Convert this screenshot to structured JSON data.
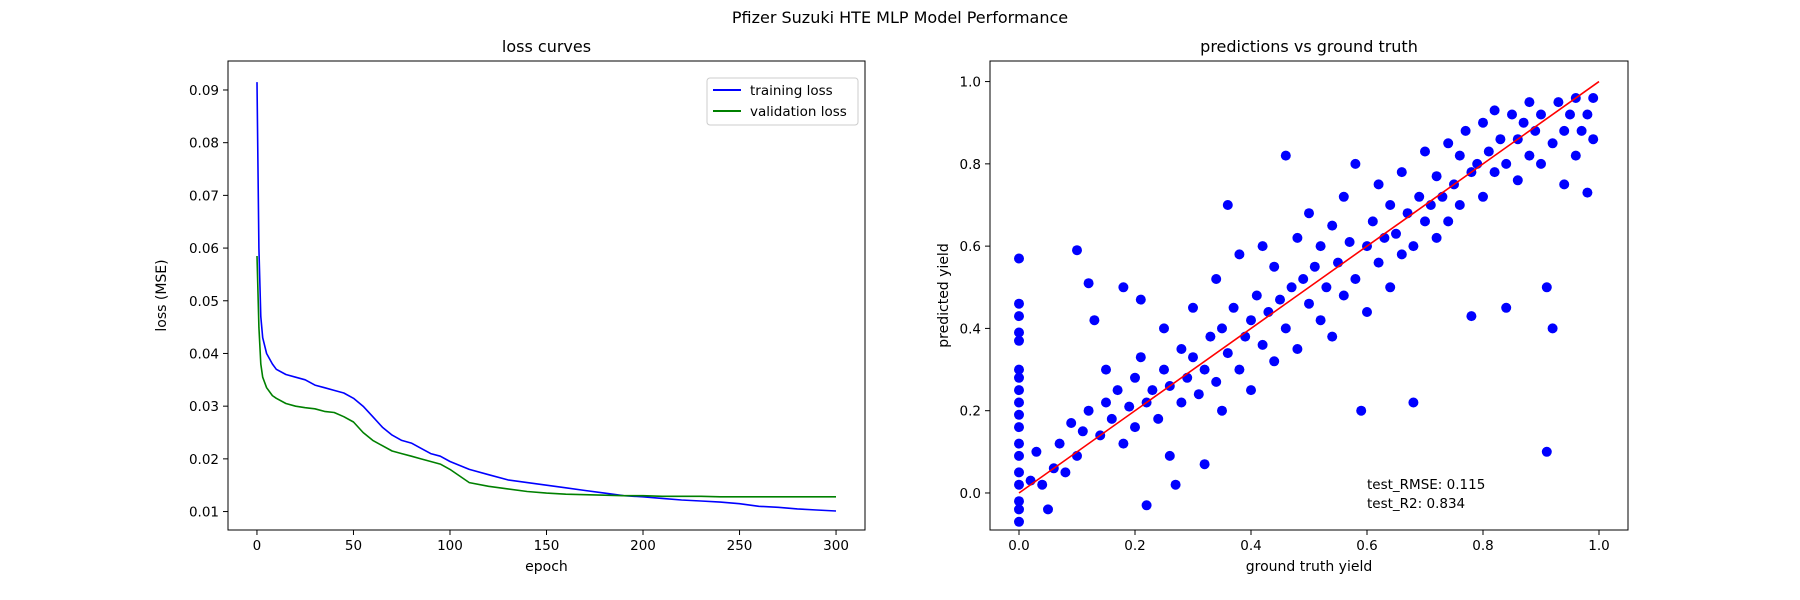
{
  "figure_title": "Pfizer Suzuki HTE MLP Model Performance",
  "colors": {
    "training": "#0000ff",
    "validation": "#008000",
    "scatter": "#0000ff",
    "identity_line": "#ff0000"
  },
  "chart_data": [
    {
      "type": "line",
      "title": "loss curves",
      "xlabel": "epoch",
      "ylabel": "loss (MSE)",
      "xlim": [
        -15,
        315
      ],
      "ylim": [
        0.0065,
        0.0955
      ],
      "xticks": [
        0,
        50,
        100,
        150,
        200,
        250,
        300
      ],
      "yticks": [
        0.01,
        0.02,
        0.03,
        0.04,
        0.05,
        0.06,
        0.07,
        0.08,
        0.09
      ],
      "ytick_labels": [
        "0.01",
        "0.02",
        "0.03",
        "0.04",
        "0.05",
        "0.06",
        "0.07",
        "0.08",
        "0.09"
      ],
      "grid": false,
      "legend": "top-right",
      "series": [
        {
          "name": "training loss",
          "x": [
            0,
            1,
            2,
            3,
            5,
            8,
            10,
            15,
            20,
            25,
            30,
            35,
            40,
            45,
            50,
            55,
            60,
            65,
            70,
            75,
            80,
            85,
            90,
            95,
            100,
            110,
            120,
            130,
            140,
            150,
            160,
            170,
            180,
            190,
            200,
            210,
            220,
            230,
            240,
            250,
            260,
            270,
            280,
            290,
            300
          ],
          "y": [
            0.0915,
            0.06,
            0.047,
            0.043,
            0.04,
            0.038,
            0.037,
            0.036,
            0.0355,
            0.035,
            0.034,
            0.0335,
            0.033,
            0.0325,
            0.0315,
            0.03,
            0.028,
            0.026,
            0.0245,
            0.0235,
            0.023,
            0.022,
            0.021,
            0.0205,
            0.0195,
            0.018,
            0.017,
            0.016,
            0.0155,
            0.015,
            0.0145,
            0.014,
            0.0135,
            0.013,
            0.0128,
            0.0125,
            0.0122,
            0.012,
            0.0118,
            0.0115,
            0.011,
            0.0108,
            0.0105,
            0.0103,
            0.0101
          ]
        },
        {
          "name": "validation loss",
          "x": [
            0,
            1,
            2,
            3,
            5,
            8,
            10,
            15,
            20,
            25,
            30,
            35,
            40,
            45,
            50,
            55,
            60,
            65,
            70,
            75,
            80,
            85,
            90,
            95,
            100,
            110,
            120,
            130,
            140,
            150,
            160,
            170,
            180,
            190,
            200,
            210,
            220,
            230,
            240,
            250,
            260,
            270,
            280,
            290,
            300
          ],
          "y": [
            0.0585,
            0.045,
            0.038,
            0.0355,
            0.0335,
            0.032,
            0.0315,
            0.0305,
            0.03,
            0.0297,
            0.0295,
            0.029,
            0.0288,
            0.028,
            0.027,
            0.025,
            0.0235,
            0.0225,
            0.0215,
            0.021,
            0.0205,
            0.02,
            0.0195,
            0.019,
            0.018,
            0.0155,
            0.0148,
            0.0143,
            0.0138,
            0.0135,
            0.0133,
            0.0132,
            0.0131,
            0.013,
            0.013,
            0.0129,
            0.0129,
            0.0129,
            0.0128,
            0.0128,
            0.0128,
            0.0128,
            0.0128,
            0.0128,
            0.0128
          ]
        }
      ]
    },
    {
      "type": "scatter",
      "title": "predictions vs ground truth",
      "xlabel": "ground truth yield",
      "ylabel": "predicted yield",
      "xlim": [
        -0.05,
        1.05
      ],
      "ylim": [
        -0.09,
        1.05
      ],
      "xticks": [
        0.0,
        0.2,
        0.4,
        0.6,
        0.8,
        1.0
      ],
      "yticks": [
        0.0,
        0.2,
        0.4,
        0.6,
        0.8,
        1.0
      ],
      "tick_labels": [
        "0.0",
        "0.2",
        "0.4",
        "0.6",
        "0.8",
        "1.0"
      ],
      "grid": false,
      "reference_line": {
        "x": [
          0,
          1
        ],
        "y": [
          0,
          1
        ]
      },
      "annotations": [
        "test_RMSE: 0.115",
        "test_R2: 0.834"
      ],
      "annotation_anchor": [
        0.6,
        0.0
      ],
      "points": [
        [
          0.0,
          0.57
        ],
        [
          0.0,
          0.46
        ],
        [
          0.0,
          0.43
        ],
        [
          0.0,
          0.39
        ],
        [
          0.0,
          0.37
        ],
        [
          0.0,
          0.3
        ],
        [
          0.0,
          0.28
        ],
        [
          0.0,
          0.25
        ],
        [
          0.0,
          0.22
        ],
        [
          0.0,
          0.19
        ],
        [
          0.0,
          0.16
        ],
        [
          0.0,
          0.12
        ],
        [
          0.0,
          0.09
        ],
        [
          0.0,
          0.05
        ],
        [
          0.0,
          0.02
        ],
        [
          0.0,
          -0.02
        ],
        [
          0.0,
          -0.04
        ],
        [
          0.0,
          -0.07
        ],
        [
          0.02,
          0.03
        ],
        [
          0.03,
          0.1
        ],
        [
          0.04,
          0.02
        ],
        [
          0.05,
          -0.04
        ],
        [
          0.06,
          0.06
        ],
        [
          0.07,
          0.12
        ],
        [
          0.08,
          0.05
        ],
        [
          0.09,
          0.17
        ],
        [
          0.1,
          0.59
        ],
        [
          0.1,
          0.09
        ],
        [
          0.11,
          0.15
        ],
        [
          0.12,
          0.2
        ],
        [
          0.12,
          0.51
        ],
        [
          0.13,
          0.42
        ],
        [
          0.14,
          0.14
        ],
        [
          0.15,
          0.22
        ],
        [
          0.15,
          0.3
        ],
        [
          0.16,
          0.18
        ],
        [
          0.17,
          0.25
        ],
        [
          0.18,
          0.5
        ],
        [
          0.18,
          0.12
        ],
        [
          0.19,
          0.21
        ],
        [
          0.2,
          0.28
        ],
        [
          0.2,
          0.16
        ],
        [
          0.21,
          0.33
        ],
        [
          0.21,
          0.47
        ],
        [
          0.22,
          -0.03
        ],
        [
          0.22,
          0.22
        ],
        [
          0.23,
          0.25
        ],
        [
          0.24,
          0.18
        ],
        [
          0.25,
          0.3
        ],
        [
          0.25,
          0.4
        ],
        [
          0.26,
          0.26
        ],
        [
          0.26,
          0.09
        ],
        [
          0.27,
          0.02
        ],
        [
          0.28,
          0.35
        ],
        [
          0.28,
          0.22
        ],
        [
          0.29,
          0.28
        ],
        [
          0.3,
          0.33
        ],
        [
          0.3,
          0.45
        ],
        [
          0.31,
          0.24
        ],
        [
          0.32,
          0.3
        ],
        [
          0.32,
          0.07
        ],
        [
          0.33,
          0.38
        ],
        [
          0.34,
          0.52
        ],
        [
          0.34,
          0.27
        ],
        [
          0.35,
          0.4
        ],
        [
          0.35,
          0.2
        ],
        [
          0.36,
          0.34
        ],
        [
          0.36,
          0.7
        ],
        [
          0.37,
          0.45
        ],
        [
          0.38,
          0.3
        ],
        [
          0.38,
          0.58
        ],
        [
          0.39,
          0.38
        ],
        [
          0.4,
          0.42
        ],
        [
          0.4,
          0.25
        ],
        [
          0.41,
          0.48
        ],
        [
          0.42,
          0.36
        ],
        [
          0.42,
          0.6
        ],
        [
          0.43,
          0.44
        ],
        [
          0.44,
          0.32
        ],
        [
          0.44,
          0.55
        ],
        [
          0.45,
          0.47
        ],
        [
          0.46,
          0.82
        ],
        [
          0.46,
          0.4
        ],
        [
          0.47,
          0.5
        ],
        [
          0.48,
          0.62
        ],
        [
          0.48,
          0.35
        ],
        [
          0.49,
          0.52
        ],
        [
          0.5,
          0.46
        ],
        [
          0.5,
          0.68
        ],
        [
          0.51,
          0.55
        ],
        [
          0.52,
          0.42
        ],
        [
          0.52,
          0.6
        ],
        [
          0.53,
          0.5
        ],
        [
          0.54,
          0.65
        ],
        [
          0.54,
          0.38
        ],
        [
          0.55,
          0.56
        ],
        [
          0.56,
          0.72
        ],
        [
          0.56,
          0.48
        ],
        [
          0.57,
          0.61
        ],
        [
          0.58,
          0.8
        ],
        [
          0.58,
          0.52
        ],
        [
          0.59,
          0.2
        ],
        [
          0.6,
          0.6
        ],
        [
          0.6,
          0.44
        ],
        [
          0.61,
          0.66
        ],
        [
          0.62,
          0.56
        ],
        [
          0.62,
          0.75
        ],
        [
          0.63,
          0.62
        ],
        [
          0.64,
          0.5
        ],
        [
          0.64,
          0.7
        ],
        [
          0.65,
          0.63
        ],
        [
          0.66,
          0.58
        ],
        [
          0.66,
          0.78
        ],
        [
          0.67,
          0.68
        ],
        [
          0.68,
          0.22
        ],
        [
          0.68,
          0.6
        ],
        [
          0.69,
          0.72
        ],
        [
          0.7,
          0.66
        ],
        [
          0.7,
          0.83
        ],
        [
          0.71,
          0.7
        ],
        [
          0.72,
          0.62
        ],
        [
          0.72,
          0.77
        ],
        [
          0.73,
          0.72
        ],
        [
          0.74,
          0.85
        ],
        [
          0.74,
          0.66
        ],
        [
          0.75,
          0.75
        ],
        [
          0.76,
          0.82
        ],
        [
          0.76,
          0.7
        ],
        [
          0.77,
          0.88
        ],
        [
          0.78,
          0.78
        ],
        [
          0.78,
          0.43
        ],
        [
          0.79,
          0.8
        ],
        [
          0.8,
          0.72
        ],
        [
          0.8,
          0.9
        ],
        [
          0.81,
          0.83
        ],
        [
          0.82,
          0.78
        ],
        [
          0.82,
          0.93
        ],
        [
          0.83,
          0.86
        ],
        [
          0.84,
          0.45
        ],
        [
          0.84,
          0.8
        ],
        [
          0.85,
          0.92
        ],
        [
          0.86,
          0.86
        ],
        [
          0.86,
          0.76
        ],
        [
          0.87,
          0.9
        ],
        [
          0.88,
          0.82
        ],
        [
          0.88,
          0.95
        ],
        [
          0.89,
          0.88
        ],
        [
          0.9,
          0.8
        ],
        [
          0.9,
          0.92
        ],
        [
          0.91,
          0.5
        ],
        [
          0.91,
          0.1
        ],
        [
          0.92,
          0.4
        ],
        [
          0.92,
          0.85
        ],
        [
          0.93,
          0.95
        ],
        [
          0.94,
          0.88
        ],
        [
          0.94,
          0.75
        ],
        [
          0.95,
          0.92
        ],
        [
          0.96,
          0.82
        ],
        [
          0.96,
          0.96
        ],
        [
          0.97,
          0.88
        ],
        [
          0.98,
          0.73
        ],
        [
          0.98,
          0.92
        ],
        [
          0.99,
          0.96
        ],
        [
          0.99,
          0.86
        ]
      ]
    }
  ]
}
